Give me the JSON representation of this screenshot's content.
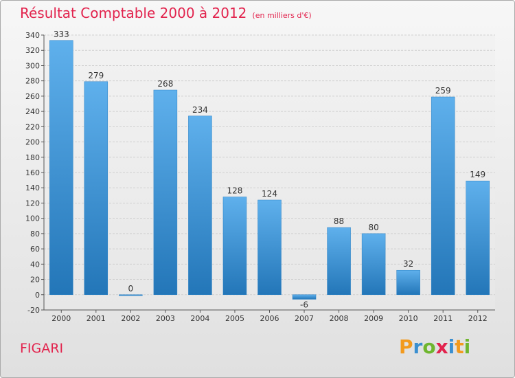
{
  "header": {
    "title": "Résultat Comptable 2000 à 2012",
    "subtitle": "(en milliers d'€)"
  },
  "footer": {
    "commune": "FIGARI",
    "logo": {
      "letters": [
        "P",
        "r",
        "o",
        "x",
        "i",
        "t",
        "i"
      ],
      "colors": [
        "#f29a1d",
        "#3a8fd0",
        "#6fb62f",
        "#e2234d",
        "#3a8fd0",
        "#f29a1d",
        "#6fb62f"
      ]
    }
  },
  "chart_data": {
    "type": "bar",
    "title": "Résultat Comptable 2000 à 2012",
    "categories": [
      "2000",
      "2001",
      "2002",
      "2003",
      "2004",
      "2005",
      "2006",
      "2007",
      "2008",
      "2009",
      "2010",
      "2011",
      "2012"
    ],
    "values": [
      333,
      279,
      0,
      268,
      234,
      128,
      124,
      -6,
      88,
      80,
      32,
      259,
      149
    ],
    "data_labels": [
      "333",
      "279",
      "0",
      "268",
      "234",
      "128",
      "124",
      "-6",
      "88",
      "80",
      "32",
      "259",
      "149"
    ],
    "ylim": [
      -20,
      340
    ],
    "yticks": [
      -20,
      0,
      20,
      40,
      60,
      80,
      100,
      120,
      140,
      160,
      180,
      200,
      220,
      240,
      260,
      280,
      300,
      320,
      340
    ],
    "grid": true,
    "bar_color": "#3b97dc",
    "xlabel": "",
    "ylabel": ""
  }
}
